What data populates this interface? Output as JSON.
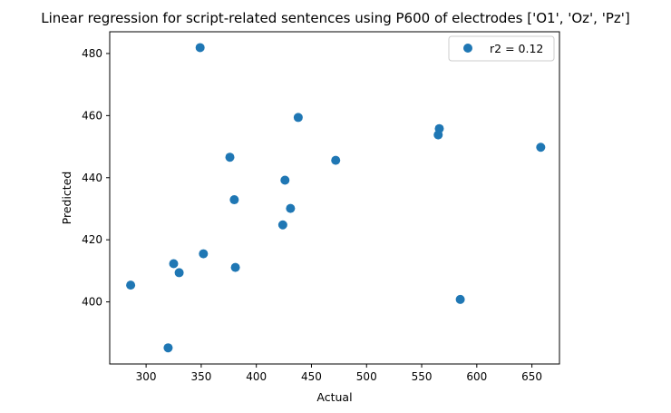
{
  "chart_data": {
    "type": "scatter",
    "title": "Linear regression for script-related sentences using P600 of electrodes ['O1', 'Oz', 'Pz']",
    "xlabel": "Actual",
    "ylabel": "Predicted",
    "xlim": [
      267,
      675
    ],
    "ylim": [
      380,
      487
    ],
    "xticks": [
      300,
      350,
      400,
      450,
      500,
      550,
      600,
      650
    ],
    "yticks": [
      400,
      420,
      440,
      460,
      480
    ],
    "grid": false,
    "legend_position": "top-right",
    "series": [
      {
        "name": "r2 = 0.12",
        "color": "#1f77b4",
        "points": [
          {
            "x": 286,
            "y": 405.4
          },
          {
            "x": 320,
            "y": 385.2
          },
          {
            "x": 325,
            "y": 412.3
          },
          {
            "x": 330,
            "y": 409.4
          },
          {
            "x": 349,
            "y": 481.9
          },
          {
            "x": 352,
            "y": 415.5
          },
          {
            "x": 376,
            "y": 446.6
          },
          {
            "x": 380,
            "y": 432.9
          },
          {
            "x": 381,
            "y": 411.1
          },
          {
            "x": 424,
            "y": 424.8
          },
          {
            "x": 426,
            "y": 439.2
          },
          {
            "x": 431,
            "y": 430.1
          },
          {
            "x": 438,
            "y": 459.4
          },
          {
            "x": 472,
            "y": 445.6
          },
          {
            "x": 565,
            "y": 453.8
          },
          {
            "x": 566,
            "y": 455.8
          },
          {
            "x": 585,
            "y": 400.8
          },
          {
            "x": 658,
            "y": 449.8
          }
        ]
      }
    ]
  }
}
